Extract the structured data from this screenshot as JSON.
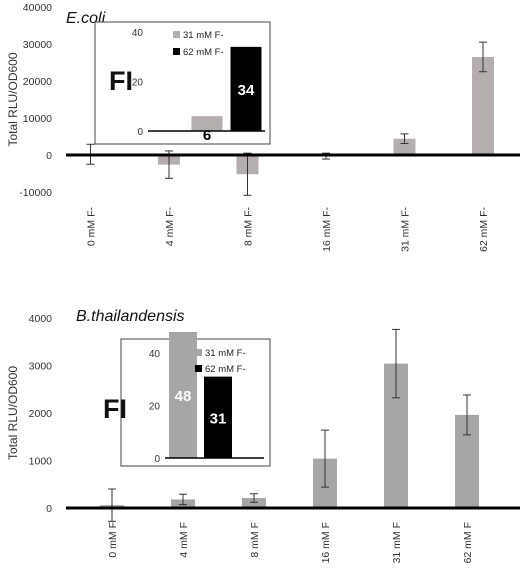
{
  "chart_data": [
    {
      "type": "bar",
      "title": "E.coli",
      "xlabel": "",
      "ylabel": "Total RLU/OD600",
      "ylim": [
        -10000,
        40000
      ],
      "yticks": [
        "40000",
        "30000",
        "20000",
        "10000",
        "0",
        "-10000"
      ],
      "categories": [
        "0 mM F-",
        "4 mM F-",
        "8 mM F-",
        "16 mM F-",
        "31 mM F-",
        "62 mM F-"
      ],
      "values": [
        200,
        -2600,
        -5200,
        -300,
        4400,
        26500
      ],
      "error": [
        2700,
        3700,
        5700,
        800,
        1300,
        4000
      ],
      "grid": false,
      "colors": {
        "bar": "#b4aeae",
        "axis": "#000000"
      },
      "inset": {
        "label": "FI",
        "type": "bar",
        "ylim": [
          0,
          40
        ],
        "yticks": [
          "40",
          "20",
          "0"
        ],
        "legend_position": "top-right",
        "series": [
          {
            "name": "31 mM F-",
            "value": 6,
            "value_label": "6",
            "color": "#b4aeae",
            "label_color": "#000000"
          },
          {
            "name": "62 mM F-",
            "value": 34,
            "value_label": "34",
            "color": "#000000",
            "label_color": "#ffffff"
          }
        ]
      }
    },
    {
      "type": "bar",
      "title": "B.thailandensis",
      "xlabel": "",
      "ylabel": "Total RLU/OD600",
      "ylim": [
        0,
        4000
      ],
      "yticks": [
        "4000",
        "3000",
        "2000",
        "1000",
        "0"
      ],
      "categories": [
        "0 mM F",
        "4 mM F",
        "8 mM F",
        "16 mM F",
        "31 mM F",
        "62 mM F"
      ],
      "values": [
        60,
        180,
        210,
        1040,
        3040,
        1960
      ],
      "error": [
        340,
        110,
        90,
        600,
        720,
        420
      ],
      "grid": false,
      "colors": {
        "bar": "#a6a6a6",
        "axis": "#000000"
      },
      "inset": {
        "label": "FI",
        "type": "bar",
        "ylim": [
          0,
          40
        ],
        "yticks": [
          "40",
          "20",
          "0"
        ],
        "legend_position": "top-right",
        "series": [
          {
            "name": "31 mM F-",
            "value": 48,
            "value_label": "48",
            "color": "#a6a6a6",
            "label_color": "#ffffff"
          },
          {
            "name": "62 mM F-",
            "value": 31,
            "value_label": "31",
            "color": "#000000",
            "label_color": "#ffffff"
          }
        ]
      }
    }
  ]
}
